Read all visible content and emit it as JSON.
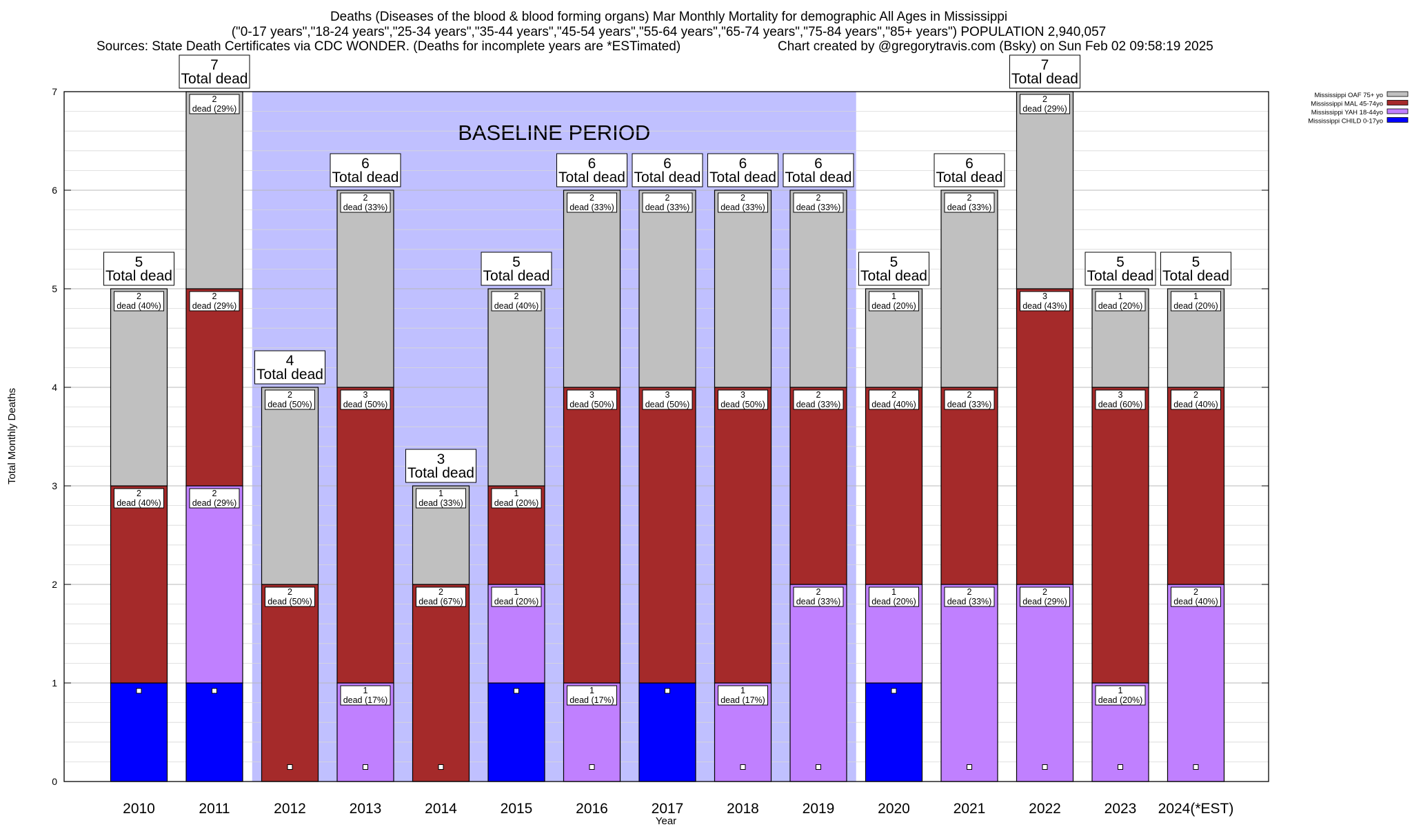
{
  "chart_data": {
    "type": "bar",
    "stacked": true,
    "title_lines": [
      "Deaths (Diseases of the blood & blood forming organs) Mar Monthly Mortality for demographic All Ages in Mississippi",
      "(\"0-17 years\",\"18-24 years\",\"25-34 years\",\"35-44 years\",\"45-54 years\",\"55-64 years\",\"65-74 years\",\"75-84 years\",\"85+ years\") POPULATION 2,940,057"
    ],
    "sources_left": "Sources: State Death Certificates via CDC WONDER. (Deaths for incomplete years are *ESTimated)",
    "sources_right": "Chart created by @gregorytravis.com (Bsky) on Sun Feb 02 09:58:19 2025",
    "xlabel": "Year",
    "ylabel": "Total Monthly Deaths",
    "ylim": [
      0,
      7
    ],
    "y_ticks": [
      "0",
      "1",
      "2",
      "3",
      "4",
      "5",
      "6",
      "7"
    ],
    "grid": true,
    "legend_position": "top-right",
    "baseline": {
      "label": "BASELINE PERIOD",
      "start": "2012",
      "end": "2019"
    },
    "total_label": "Total dead",
    "categories": [
      "2010",
      "2011",
      "2012",
      "2013",
      "2014",
      "2015",
      "2016",
      "2017",
      "2018",
      "2019",
      "2020",
      "2021",
      "2022",
      "2023",
      "2024(*EST)"
    ],
    "totals": [
      5,
      7,
      4,
      6,
      3,
      5,
      6,
      6,
      6,
      6,
      5,
      6,
      7,
      5,
      5
    ],
    "series": [
      {
        "name": "Mississippi CHILD 0-17yo",
        "color": "#0000ff",
        "values": [
          1,
          1,
          0,
          0,
          0,
          1,
          0,
          1,
          0,
          0,
          1,
          0,
          0,
          0,
          0
        ],
        "labels": [
          "",
          "",
          "",
          "",
          "",
          "",
          "",
          "",
          "",
          "",
          "",
          "",
          "",
          "",
          ""
        ]
      },
      {
        "name": "Mississippi YAH 18-44yo",
        "color": "#c080ff",
        "values": [
          0,
          2,
          0,
          1,
          0,
          1,
          1,
          0,
          1,
          2,
          1,
          2,
          2,
          1,
          2
        ],
        "labels": [
          "",
          "dead (29%)",
          "",
          "dead (17%)",
          "",
          "dead (20%)",
          "dead (17%)",
          "",
          "dead (17%)",
          "dead (33%)",
          "dead (20%)",
          "dead (33%)",
          "dead (29%)",
          "dead (20%)",
          "dead (40%)"
        ]
      },
      {
        "name": "Mississippi MAL 45-74yo",
        "color": "#a52a2a",
        "values": [
          2,
          2,
          2,
          3,
          2,
          1,
          3,
          3,
          3,
          2,
          2,
          2,
          3,
          3,
          2
        ],
        "labels": [
          "dead (40%)",
          "dead (29%)",
          "dead (50%)",
          "dead (50%)",
          "dead (67%)",
          "dead (20%)",
          "dead (50%)",
          "dead (50%)",
          "dead (50%)",
          "dead (33%)",
          "dead (40%)",
          "dead (33%)",
          "dead (43%)",
          "dead (60%)",
          "dead (40%)"
        ]
      },
      {
        "name": "Mississippi OAF 75+ yo",
        "color": "#c0c0c0",
        "values": [
          2,
          2,
          2,
          2,
          1,
          2,
          2,
          2,
          2,
          2,
          1,
          2,
          2,
          1,
          1
        ],
        "labels": [
          "dead (40%)",
          "dead (29%)",
          "dead (50%)",
          "dead (33%)",
          "dead (33%)",
          "dead (40%)",
          "dead (33%)",
          "dead (33%)",
          "dead (33%)",
          "dead (33%)",
          "dead (20%)",
          "dead (33%)",
          "dead (29%)",
          "dead (20%)",
          "dead (20%)"
        ]
      }
    ],
    "legend_order": [
      "Mississippi OAF 75+ yo",
      "Mississippi MAL 45-74yo",
      "Mississippi YAH 18-44yo",
      "Mississippi CHILD 0-17yo"
    ]
  }
}
